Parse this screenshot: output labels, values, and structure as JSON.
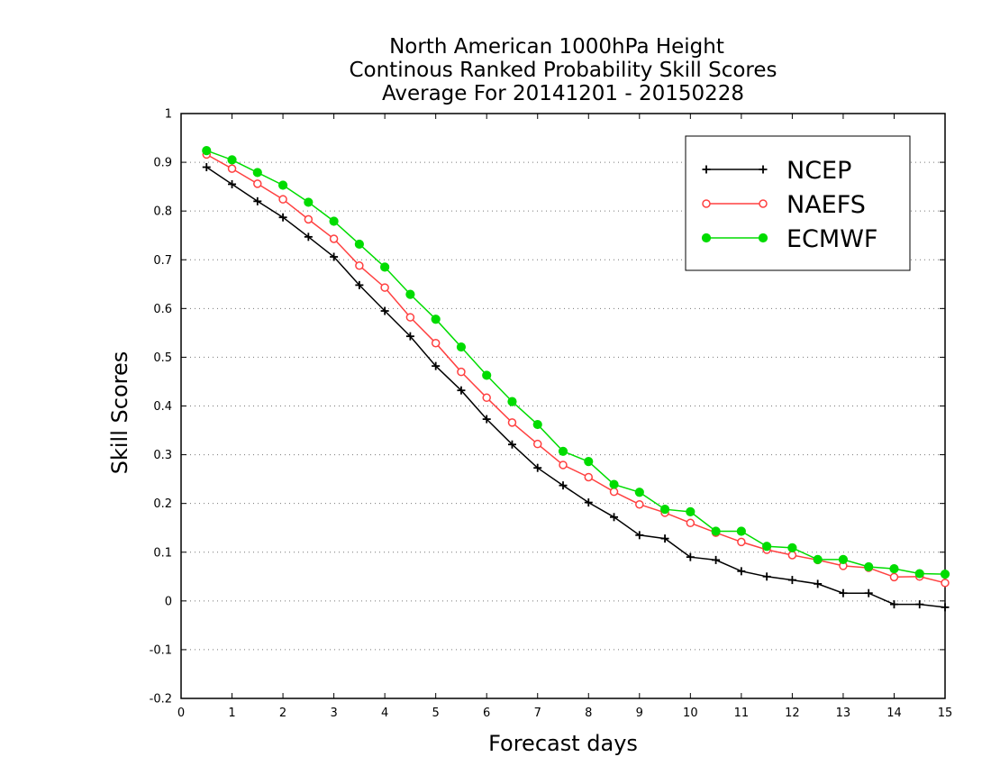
{
  "chart_data": {
    "type": "line",
    "title_lines": [
      "North American 1000hPa Height",
      "Continous Ranked Probability Skill Scores",
      "Average For 20141201 - 20150228"
    ],
    "xlabel": "Forecast days",
    "ylabel": "Skill Scores",
    "xlim": [
      0,
      15
    ],
    "ylim": [
      -0.2,
      1
    ],
    "xticks": [
      0,
      1,
      2,
      3,
      4,
      5,
      6,
      7,
      8,
      9,
      10,
      11,
      12,
      13,
      14,
      15
    ],
    "xtick_labels": [
      "0",
      "1",
      "2",
      "3",
      "4",
      "5",
      "6",
      "7",
      "8",
      "9",
      "10",
      "11",
      "12",
      "13",
      "14",
      "15"
    ],
    "yticks": [
      -0.2,
      -0.1,
      0,
      0.1,
      0.2,
      0.3,
      0.4,
      0.5,
      0.6,
      0.7,
      0.8,
      0.9,
      1
    ],
    "ytick_labels": [
      "-0.2",
      "-0.1",
      "0",
      "0.1",
      "0.2",
      "0.3",
      "0.4",
      "0.5",
      "0.6",
      "0.7",
      "0.8",
      "0.9",
      "1"
    ],
    "grid": "horizontal dotted",
    "legend_position": "top-right",
    "x": [
      0.5,
      1.0,
      1.5,
      2.0,
      2.5,
      3.0,
      3.5,
      4.0,
      4.5,
      5.0,
      5.5,
      6.0,
      6.5,
      7.0,
      7.5,
      8.0,
      8.5,
      9.0,
      9.5,
      10.0,
      10.5,
      11.0,
      11.5,
      12.0,
      12.5,
      13.0,
      13.5,
      14.0,
      14.5,
      15.0
    ],
    "series": [
      {
        "name": "NCEP",
        "color": "#000000",
        "marker": "plus",
        "values": [
          0.89,
          0.855,
          0.82,
          0.787,
          0.747,
          0.706,
          0.648,
          0.595,
          0.543,
          0.482,
          0.432,
          0.373,
          0.321,
          0.273,
          0.237,
          0.202,
          0.172,
          0.135,
          0.128,
          0.09,
          0.084,
          0.061,
          0.05,
          0.043,
          0.035,
          0.016,
          0.016,
          -0.007,
          -0.007,
          -0.013
        ]
      },
      {
        "name": "NAEFS",
        "color": "#ff4040",
        "marker": "open-circle",
        "values": [
          0.916,
          0.887,
          0.856,
          0.824,
          0.783,
          0.743,
          0.688,
          0.643,
          0.582,
          0.529,
          0.47,
          0.417,
          0.366,
          0.322,
          0.279,
          0.254,
          0.224,
          0.198,
          0.181,
          0.16,
          0.14,
          0.121,
          0.105,
          0.094,
          0.084,
          0.072,
          0.068,
          0.049,
          0.05,
          0.037
        ]
      },
      {
        "name": "ECMWF",
        "color": "#00dc00",
        "marker": "filled-circle",
        "values": [
          0.924,
          0.905,
          0.879,
          0.853,
          0.818,
          0.779,
          0.732,
          0.685,
          0.629,
          0.578,
          0.521,
          0.463,
          0.409,
          0.362,
          0.307,
          0.286,
          0.239,
          0.223,
          0.188,
          0.183,
          0.143,
          0.143,
          0.112,
          0.109,
          0.085,
          0.085,
          0.07,
          0.066,
          0.056,
          0.055
        ]
      }
    ]
  }
}
